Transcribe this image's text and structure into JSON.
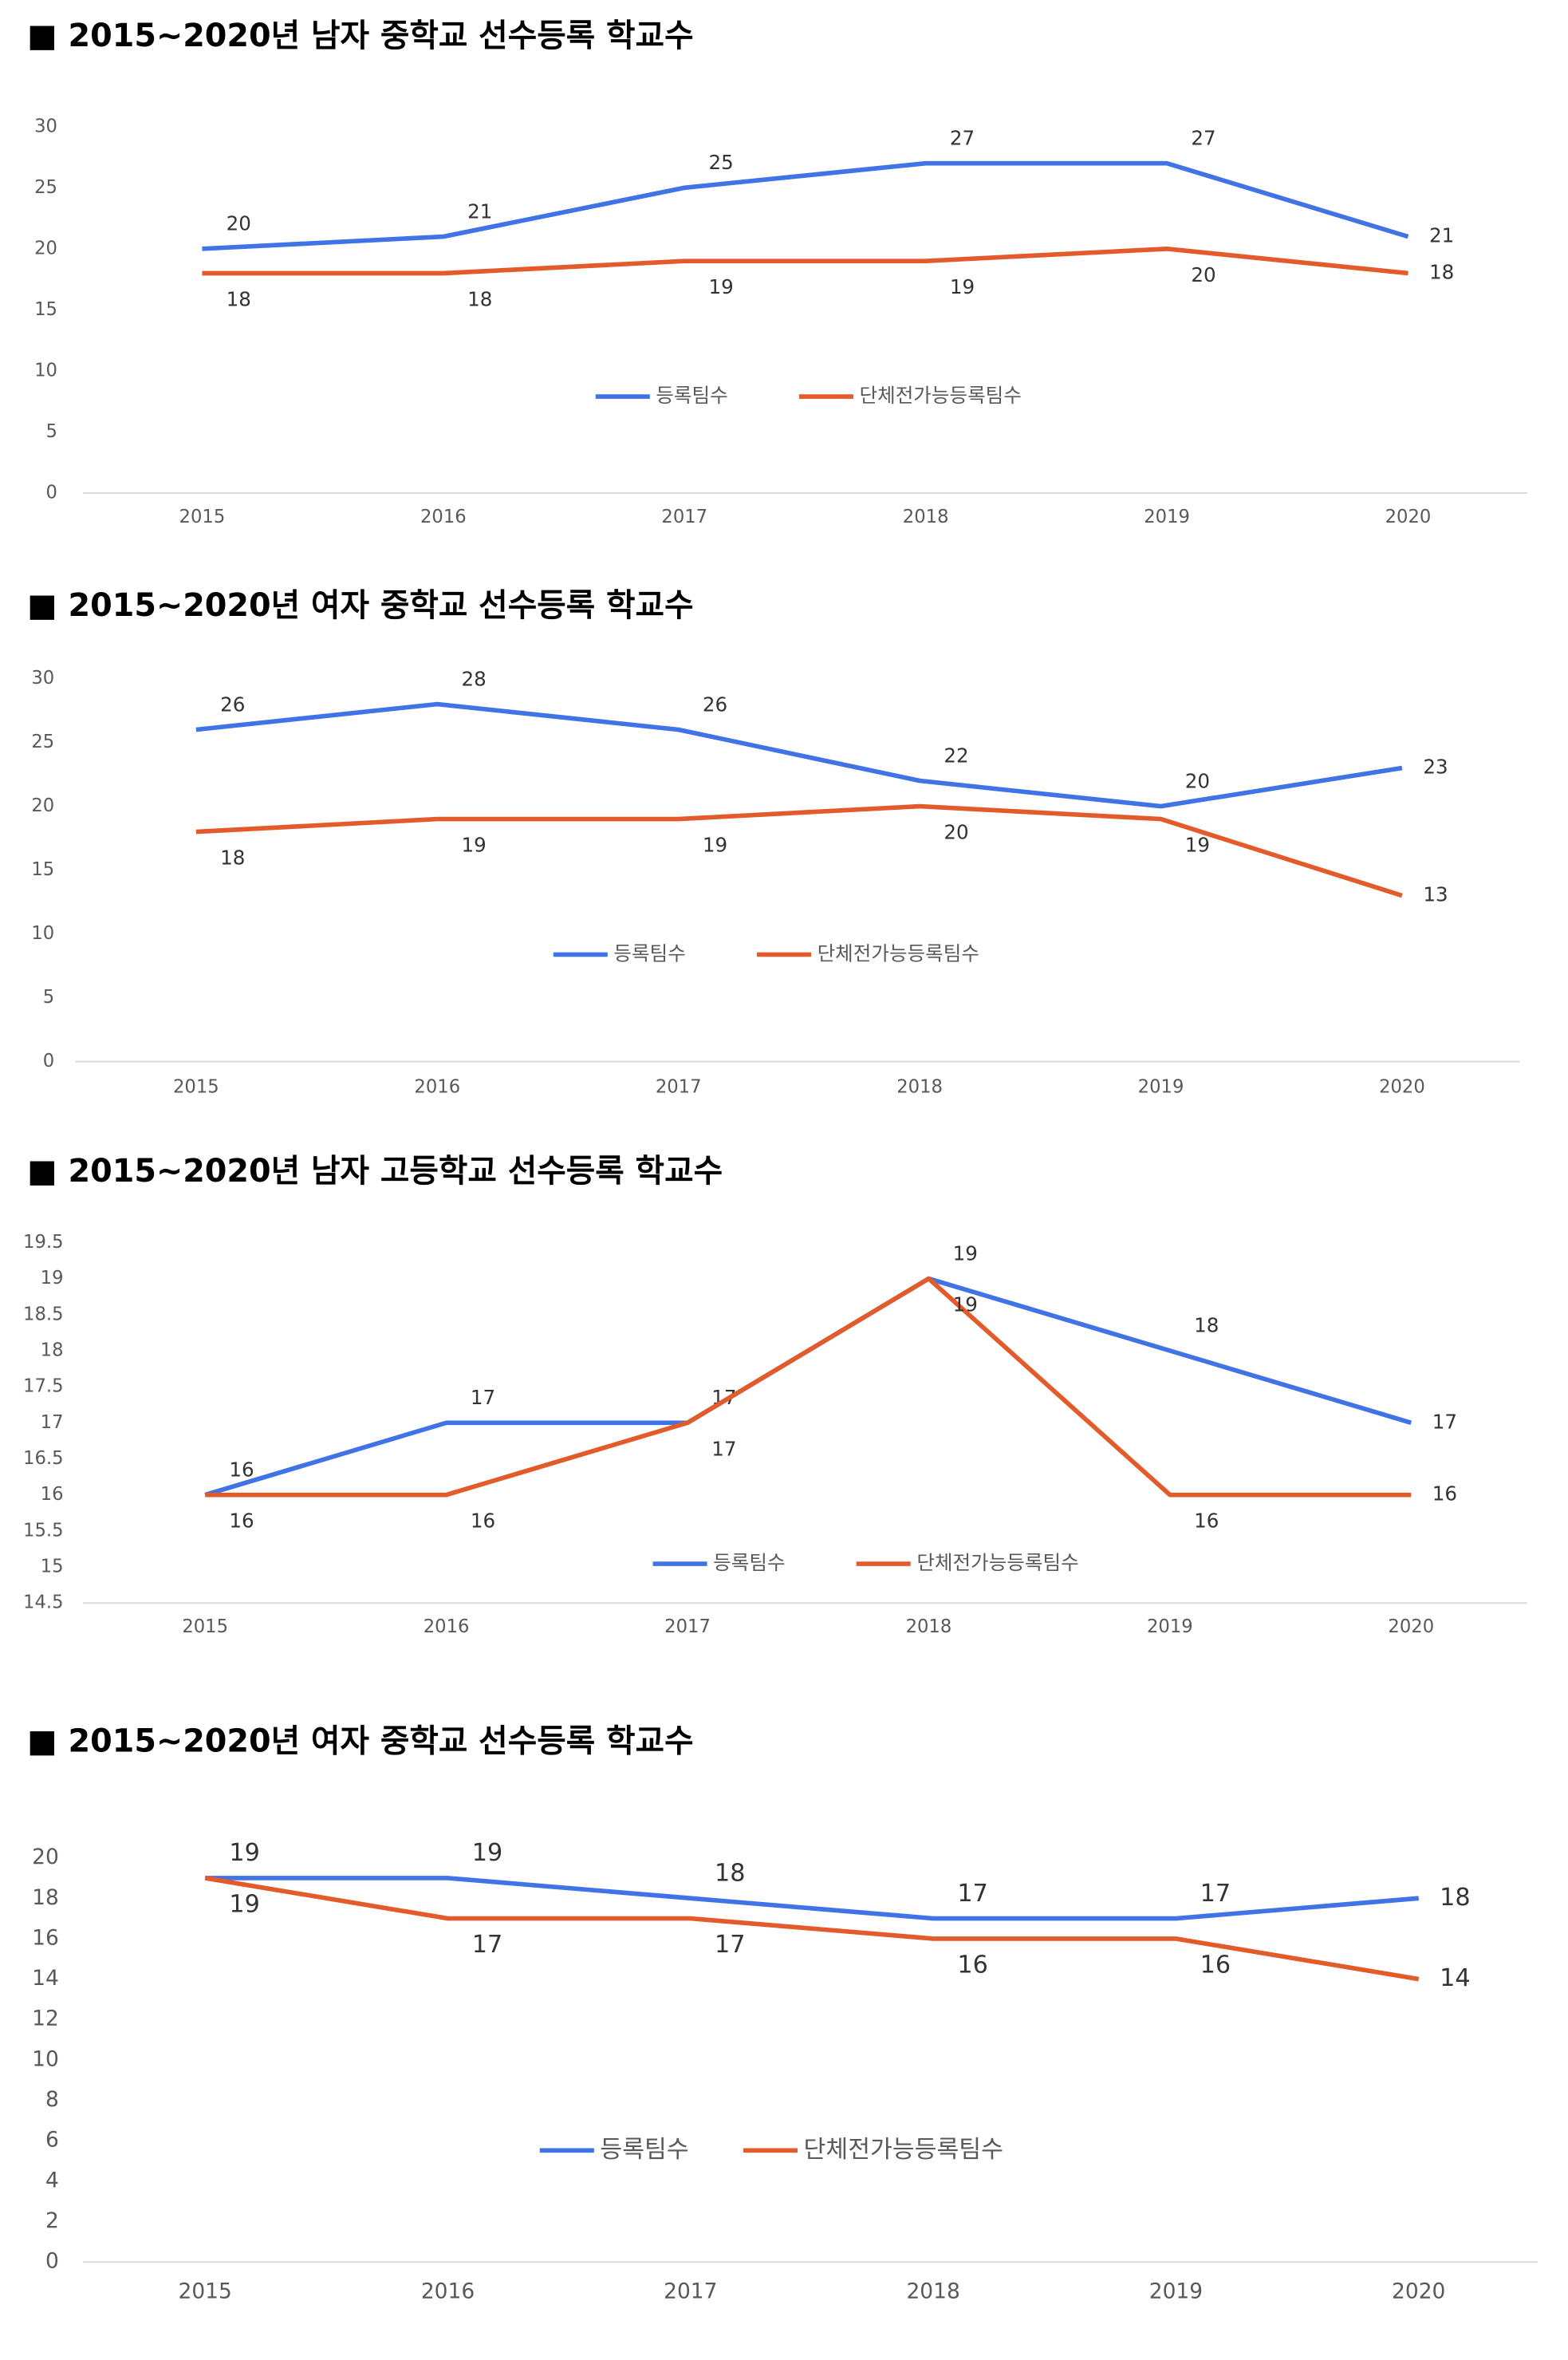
{
  "chart_data": [
    {
      "type": "line",
      "title": "■ 2015~2020년 남자 중학교 선수등록 학교수",
      "categories": [
        "2015",
        "2016",
        "2017",
        "2018",
        "2019",
        "2020"
      ],
      "series": [
        {
          "name": "등록팀수",
          "color": "#3f73e6",
          "values": [
            20,
            21,
            25,
            27,
            27,
            21
          ]
        },
        {
          "name": "단체전가능등록팀수",
          "color": "#e35b2a",
          "values": [
            18,
            18,
            19,
            19,
            20,
            18
          ]
        }
      ],
      "ylim": [
        0,
        30
      ],
      "yticks": [
        0,
        5,
        10,
        15,
        20,
        25,
        30
      ]
    },
    {
      "type": "line",
      "title": "■ 2015~2020년 여자 중학교 선수등록 학교수",
      "categories": [
        "2015",
        "2016",
        "2017",
        "2018",
        "2019",
        "2020"
      ],
      "series": [
        {
          "name": "등록팀수",
          "color": "#3f73e6",
          "values": [
            26,
            28,
            26,
            22,
            20,
            23
          ]
        },
        {
          "name": "단체전가능등록팀수",
          "color": "#e35b2a",
          "values": [
            18,
            19,
            19,
            20,
            19,
            13
          ]
        }
      ],
      "ylim": [
        0,
        30
      ],
      "yticks": [
        0,
        5,
        10,
        15,
        20,
        25,
        30
      ]
    },
    {
      "type": "line",
      "title": "■ 2015~2020년 남자 고등학교 선수등록 학교수",
      "categories": [
        "2015",
        "2016",
        "2017",
        "2018",
        "2019",
        "2020"
      ],
      "series": [
        {
          "name": "등록팀수",
          "color": "#3f73e6",
          "values": [
            16,
            17,
            17,
            19,
            18,
            17
          ]
        },
        {
          "name": "단체전가능등록팀수",
          "color": "#e35b2a",
          "values": [
            16,
            16,
            17,
            19,
            16,
            16
          ]
        }
      ],
      "ylim": [
        14.5,
        19.5
      ],
      "yticks": [
        14.5,
        15,
        15.5,
        16,
        16.5,
        17,
        17.5,
        18,
        18.5,
        19,
        19.5
      ]
    },
    {
      "type": "line",
      "title": "■ 2015~2020년 여자 중학교 선수등록 학교수",
      "categories": [
        "2015",
        "2016",
        "2017",
        "2018",
        "2019",
        "2020"
      ],
      "series": [
        {
          "name": "등록팀수",
          "color": "#3f73e6",
          "values": [
            19,
            19,
            18,
            17,
            17,
            18
          ]
        },
        {
          "name": "단체전가능등록팀수",
          "color": "#e35b2a",
          "values": [
            19,
            17,
            17,
            16,
            16,
            14
          ]
        }
      ],
      "ylim": [
        0,
        20
      ],
      "yticks": [
        0,
        2,
        4,
        6,
        8,
        10,
        12,
        14,
        16,
        18,
        20
      ]
    }
  ]
}
